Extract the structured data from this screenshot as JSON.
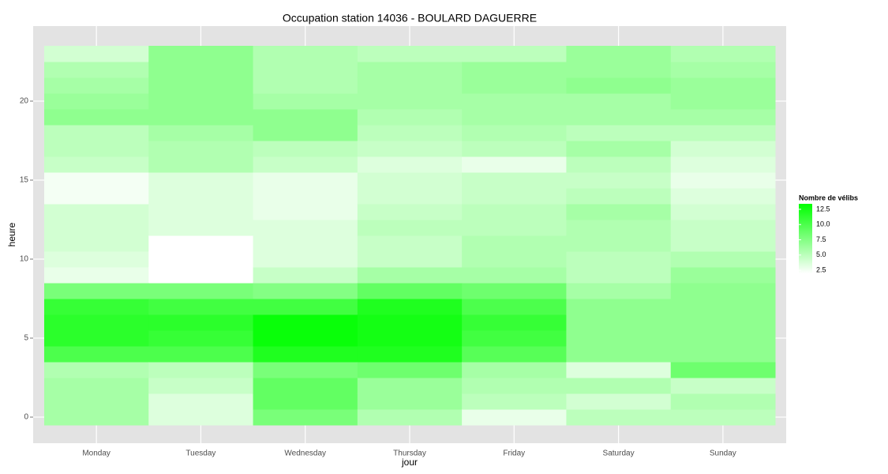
{
  "chart_data": {
    "type": "heatmap",
    "title": "Occupation station 14036 - BOULARD DAGUERRE",
    "x_label": "jour",
    "y_label": "heure",
    "categories": [
      "Monday",
      "Tuesday",
      "Wednesday",
      "Thursday",
      "Friday",
      "Saturday",
      "Sunday"
    ],
    "y": [
      0,
      1,
      2,
      3,
      4,
      5,
      6,
      7,
      8,
      9,
      10,
      11,
      12,
      13,
      14,
      15,
      16,
      17,
      18,
      19,
      20,
      21,
      22,
      23
    ],
    "values": [
      [
        6,
        6,
        6,
        5.5,
        10,
        11.5,
        11.5,
        11,
        8,
        3,
        3.5,
        4,
        4,
        4,
        2.5,
        2.5,
        4.5,
        5,
        5,
        7,
        6.5,
        6,
        5.5,
        4
      ],
      [
        3.5,
        3.5,
        4.5,
        5,
        10,
        11,
        11.5,
        10.5,
        8,
        2,
        2,
        2,
        3.5,
        3.5,
        3.5,
        3.5,
        5.5,
        5.5,
        6,
        7,
        7,
        7,
        7,
        7
      ],
      [
        8,
        9,
        9,
        8,
        12,
        13,
        13,
        10.5,
        7.5,
        4.5,
        3.5,
        3.5,
        3.5,
        3,
        3,
        3,
        4.5,
        5,
        7,
        7,
        6,
        5.5,
        5.5,
        5.5
      ],
      [
        5.5,
        6.5,
        6.5,
        8.5,
        12,
        12.5,
        12.5,
        12,
        9,
        6,
        4.5,
        4.5,
        5,
        4.5,
        4,
        4,
        3.5,
        4.5,
        5,
        5.5,
        6,
        6,
        6,
        5
      ],
      [
        3,
        5,
        5.5,
        6,
        9.5,
        10.5,
        11,
        10,
        8.5,
        6,
        5.5,
        5.5,
        5,
        5,
        4.5,
        4.5,
        3,
        5,
        5.5,
        6,
        6,
        6.5,
        6.5,
        5
      ],
      [
        5,
        4,
        5.5,
        3.5,
        7,
        7,
        7,
        7,
        6,
        5,
        5,
        5.5,
        5.5,
        6,
        5,
        4.5,
        5,
        6,
        5,
        6,
        6,
        7,
        6.5,
        6.5
      ],
      [
        5,
        5.5,
        4.5,
        8.5,
        7,
        7,
        7,
        7,
        7,
        6.5,
        5.5,
        4.5,
        4.5,
        4,
        3.5,
        3,
        3.5,
        4,
        5,
        6,
        6.5,
        6.5,
        6,
        5.5
      ]
    ],
    "ylim": [
      -1.65,
      24.75
    ],
    "yticks": [
      0,
      5,
      10,
      15,
      20
    ],
    "grid": true,
    "legend_title": "Nombre de vélibs",
    "color_low": "#ffffff",
    "color_high": "#00ff00",
    "colorlim": [
      2,
      13.4
    ],
    "colorticks": [
      12.5,
      {
        "value": 10,
        "label": "10.0"
      },
      7.5,
      {
        "value": 5,
        "label": "5.0"
      },
      2.5
    ]
  }
}
